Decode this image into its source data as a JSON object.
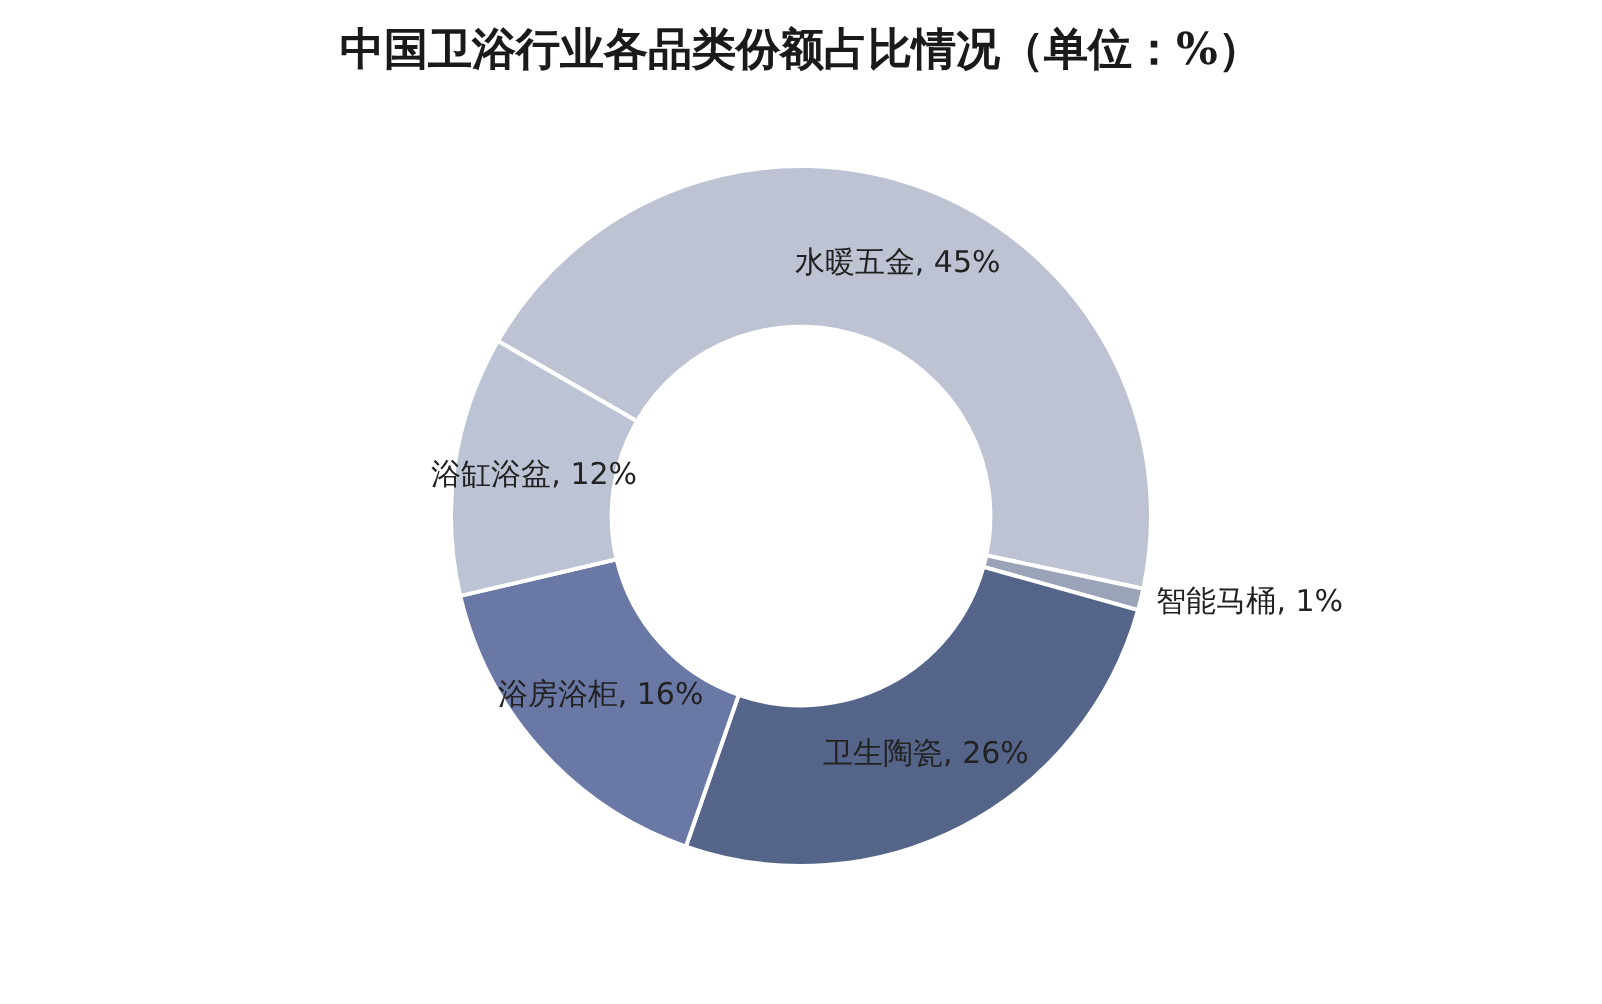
{
  "chart_data": {
    "type": "donut",
    "title": "中国卫浴行业各品类份额占比情况（单位：%）",
    "categories": [
      "水暖五金",
      "智能马桶",
      "卫生陶瓷",
      "浴房浴柜",
      "浴缸浴盆"
    ],
    "values": [
      45,
      1,
      26,
      16,
      12
    ],
    "value_labels": [
      "45%",
      "1%",
      "26%",
      "16%",
      "12%"
    ],
    "colors": [
      "#bdc3d3",
      "#9aa3b8",
      "#55658a",
      "#6a78a6",
      "#bcc3d4"
    ],
    "legend": false
  }
}
